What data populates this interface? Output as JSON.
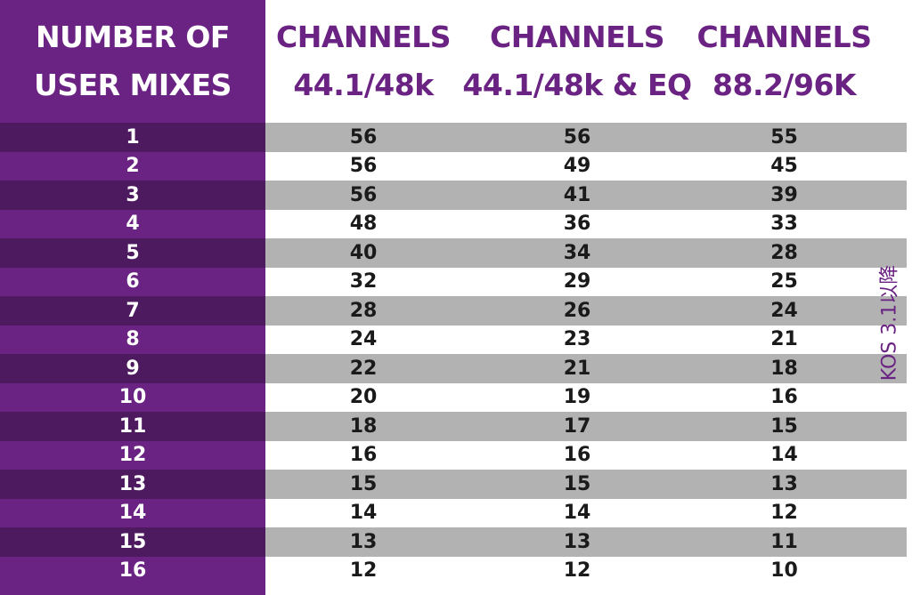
{
  "header": {
    "left_line1": "NUMBER OF",
    "left_line2": "USER MIXES",
    "col1_line1": "CHANNELS",
    "col1_line2": "44.1/48k",
    "col2_line1": "CHANNELS",
    "col2_line2": "44.1/48k & EQ",
    "col3_line1": "CHANNELS",
    "col3_line2": "88.2/96K"
  },
  "rows": [
    {
      "mixes": "1",
      "c1": "56",
      "c2": "56",
      "c3": "55"
    },
    {
      "mixes": "2",
      "c1": "56",
      "c2": "49",
      "c3": "45"
    },
    {
      "mixes": "3",
      "c1": "56",
      "c2": "41",
      "c3": "39"
    },
    {
      "mixes": "4",
      "c1": "48",
      "c2": "36",
      "c3": "33"
    },
    {
      "mixes": "5",
      "c1": "40",
      "c2": "34",
      "c3": "28"
    },
    {
      "mixes": "6",
      "c1": "32",
      "c2": "29",
      "c3": "25"
    },
    {
      "mixes": "7",
      "c1": "28",
      "c2": "26",
      "c3": "24"
    },
    {
      "mixes": "8",
      "c1": "24",
      "c2": "23",
      "c3": "21"
    },
    {
      "mixes": "9",
      "c1": "22",
      "c2": "21",
      "c3": "18"
    },
    {
      "mixes": "10",
      "c1": "20",
      "c2": "19",
      "c3": "16"
    },
    {
      "mixes": "11",
      "c1": "18",
      "c2": "17",
      "c3": "15"
    },
    {
      "mixes": "12",
      "c1": "16",
      "c2": "16",
      "c3": "14"
    },
    {
      "mixes": "13",
      "c1": "15",
      "c2": "15",
      "c3": "13"
    },
    {
      "mixes": "14",
      "c1": "14",
      "c2": "14",
      "c3": "12"
    },
    {
      "mixes": "15",
      "c1": "13",
      "c2": "13",
      "c3": "11"
    },
    {
      "mixes": "16",
      "c1": "12",
      "c2": "12",
      "c3": "10"
    }
  ],
  "side_note": "KOS 3.1以降",
  "colors": {
    "purple": "#6a2382",
    "dark_purple": "#4d1a60",
    "grey_band": "#b2b2b2",
    "text": "#1a1a1a"
  }
}
